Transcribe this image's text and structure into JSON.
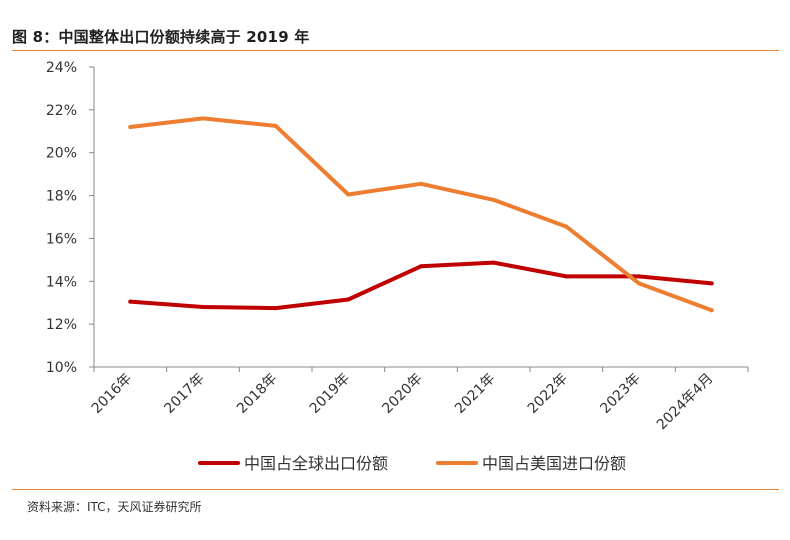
{
  "figure": {
    "title": "图 8：中国整体出口份额持续高于 2019 年",
    "source": "资料来源：ITC，天风证券研究所"
  },
  "chart_data": {
    "type": "line",
    "title": "图 8：中国整体出口份额持续高于 2019 年",
    "xlabel": "",
    "ylabel": "",
    "categories": [
      "2016年",
      "2017年",
      "2018年",
      "2019年",
      "2020年",
      "2021年",
      "2022年",
      "2023年",
      "2024年4月"
    ],
    "yticks": [
      "10%",
      "12%",
      "14%",
      "16%",
      "18%",
      "20%",
      "22%",
      "24%"
    ],
    "ylim": [
      10,
      24
    ],
    "grid": false,
    "legend_position": "bottom",
    "series": [
      {
        "name": "中国占全球出口份额",
        "color": "#c00000",
        "values": [
          13.05,
          12.8,
          12.75,
          13.15,
          14.7,
          14.87,
          14.23,
          14.23,
          13.9
        ]
      },
      {
        "name": "中国占美国进口份额",
        "color": "#ed7d31",
        "values": [
          21.2,
          21.6,
          21.25,
          18.05,
          18.55,
          17.8,
          16.55,
          13.9,
          12.65
        ]
      }
    ]
  }
}
